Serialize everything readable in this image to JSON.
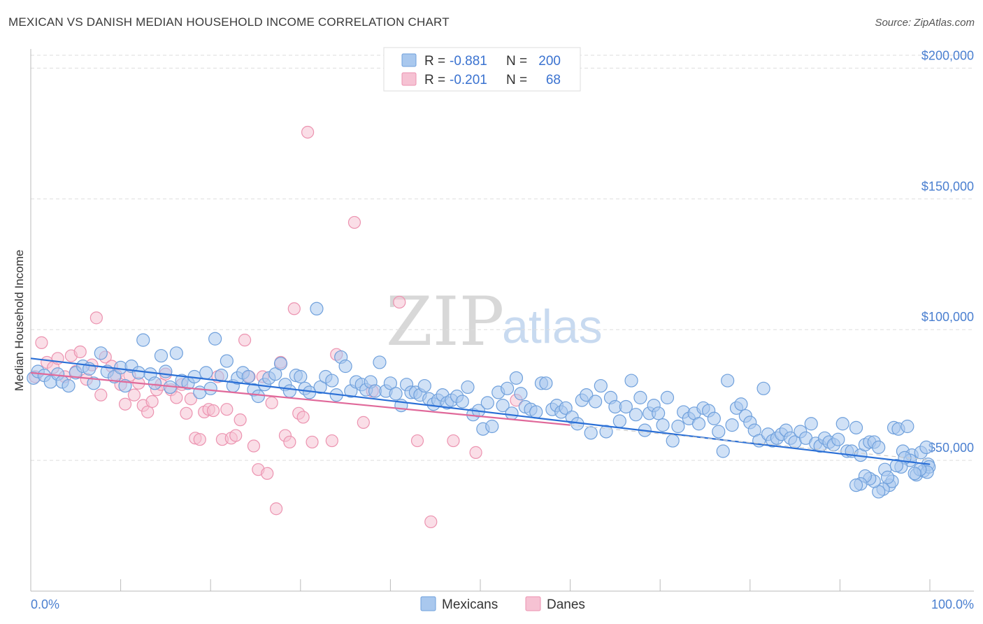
{
  "header": {
    "title": "MEXICAN VS DANISH MEDIAN HOUSEHOLD INCOME CORRELATION CHART",
    "source": "Source: ZipAtlas.com"
  },
  "watermark": {
    "zip": "ZIP",
    "atlas": "atlas"
  },
  "colors": {
    "mexicans_fill": "#a9c8ee",
    "mexicans_stroke": "#6fa0dc",
    "mexicans_line": "#2a6fd6",
    "danes_fill": "#f6c2d3",
    "danes_stroke": "#ec93b0",
    "danes_line": "#e0699a",
    "grid": "#dddddd",
    "axis_label": "#4a7fd0"
  },
  "legend": {
    "rows": [
      {
        "r_label": "R = ",
        "r_value": "-0.881",
        "n_label": "N = ",
        "n_value": "200"
      },
      {
        "r_label": "R = ",
        "r_value": "-0.201",
        "n_label": "N = ",
        "n_value": "68"
      }
    ]
  },
  "bottom_legend": [
    "Mexicans",
    "Danes"
  ],
  "chart_data": {
    "type": "scatter",
    "title": "MEXICAN VS DANISH MEDIAN HOUSEHOLD INCOME CORRELATION CHART",
    "ylabel": "Median Household Income",
    "xlabel": "",
    "xlim": [
      0,
      100
    ],
    "ylim": [
      0,
      210000
    ],
    "x_tick_labels": [
      "0.0%",
      "100.0%"
    ],
    "y_ticks": [
      50000,
      100000,
      150000,
      200000
    ],
    "y_tick_labels": [
      "$50,000",
      "$100,000",
      "$150,000",
      "$200,000"
    ],
    "grid": true,
    "legend_position": "top-center",
    "series": [
      {
        "name": "Mexicans",
        "r": -0.881,
        "n": 200,
        "trend": {
          "x": [
            0,
            100
          ],
          "y": [
            89000,
            48500
          ]
        },
        "points": [
          [
            0.3,
            81500
          ],
          [
            0.8,
            84000
          ],
          [
            1.5,
            82500
          ],
          [
            2.2,
            80000
          ],
          [
            3.0,
            83000
          ],
          [
            3.5,
            80000
          ],
          [
            4.2,
            78500
          ],
          [
            5.0,
            83500
          ],
          [
            5.8,
            86000
          ],
          [
            6.5,
            85000
          ],
          [
            7.0,
            79500
          ],
          [
            7.8,
            91000
          ],
          [
            8.5,
            84000
          ],
          [
            9.3,
            82000
          ],
          [
            10.0,
            85500
          ],
          [
            10.5,
            78500
          ],
          [
            11.2,
            86000
          ],
          [
            12.0,
            83500
          ],
          [
            12.5,
            96000
          ],
          [
            13.3,
            83000
          ],
          [
            13.8,
            79500
          ],
          [
            14.5,
            90000
          ],
          [
            15.0,
            84000
          ],
          [
            15.5,
            78000
          ],
          [
            16.2,
            91000
          ],
          [
            16.8,
            80500
          ],
          [
            17.5,
            79500
          ],
          [
            18.2,
            82000
          ],
          [
            18.8,
            76000
          ],
          [
            19.5,
            83500
          ],
          [
            20.0,
            77500
          ],
          [
            20.5,
            96500
          ],
          [
            21.2,
            82500
          ],
          [
            21.8,
            88000
          ],
          [
            22.5,
            78500
          ],
          [
            23.0,
            81500
          ],
          [
            23.6,
            83500
          ],
          [
            24.2,
            82000
          ],
          [
            24.8,
            77000
          ],
          [
            25.3,
            74500
          ],
          [
            26.0,
            79000
          ],
          [
            26.5,
            81500
          ],
          [
            27.2,
            83000
          ],
          [
            27.8,
            87000
          ],
          [
            28.3,
            79000
          ],
          [
            28.8,
            76500
          ],
          [
            29.5,
            82500
          ],
          [
            30.0,
            82000
          ],
          [
            30.5,
            77500
          ],
          [
            31.0,
            76000
          ],
          [
            31.8,
            108000
          ],
          [
            32.2,
            78000
          ],
          [
            32.8,
            82000
          ],
          [
            33.5,
            80500
          ],
          [
            34.0,
            75000
          ],
          [
            34.5,
            89500
          ],
          [
            35.0,
            86000
          ],
          [
            35.6,
            76500
          ],
          [
            36.2,
            80000
          ],
          [
            36.8,
            79000
          ],
          [
            37.3,
            77000
          ],
          [
            37.8,
            80000
          ],
          [
            38.3,
            76500
          ],
          [
            38.8,
            87500
          ],
          [
            39.5,
            76500
          ],
          [
            40.0,
            79500
          ],
          [
            40.6,
            75500
          ],
          [
            41.2,
            71000
          ],
          [
            41.8,
            79000
          ],
          [
            42.3,
            76000
          ],
          [
            42.8,
            76000
          ],
          [
            43.3,
            75000
          ],
          [
            43.8,
            78500
          ],
          [
            44.3,
            73500
          ],
          [
            44.8,
            71500
          ],
          [
            45.3,
            73000
          ],
          [
            45.8,
            75000
          ],
          [
            46.3,
            72000
          ],
          [
            46.8,
            73000
          ],
          [
            47.4,
            74500
          ],
          [
            48.0,
            72500
          ],
          [
            48.6,
            78000
          ],
          [
            49.2,
            67500
          ],
          [
            49.8,
            69000
          ],
          [
            50.3,
            62000
          ],
          [
            50.8,
            72000
          ],
          [
            51.3,
            63000
          ],
          [
            52.0,
            76000
          ],
          [
            52.5,
            71000
          ],
          [
            53.0,
            77500
          ],
          [
            53.5,
            68000
          ],
          [
            54.0,
            81500
          ],
          [
            54.5,
            75500
          ],
          [
            55.0,
            70500
          ],
          [
            55.6,
            69500
          ],
          [
            56.2,
            68500
          ],
          [
            56.8,
            79500
          ],
          [
            57.3,
            79500
          ],
          [
            58.0,
            69500
          ],
          [
            58.5,
            71000
          ],
          [
            59.0,
            68500
          ],
          [
            59.5,
            70000
          ],
          [
            60.2,
            66500
          ],
          [
            60.8,
            64000
          ],
          [
            61.3,
            73000
          ],
          [
            61.8,
            75000
          ],
          [
            62.3,
            60500
          ],
          [
            62.8,
            72500
          ],
          [
            63.4,
            78500
          ],
          [
            64.0,
            61000
          ],
          [
            64.5,
            74000
          ],
          [
            65.0,
            70500
          ],
          [
            65.5,
            65000
          ],
          [
            66.2,
            70500
          ],
          [
            66.8,
            80500
          ],
          [
            67.3,
            67500
          ],
          [
            67.8,
            74000
          ],
          [
            68.3,
            61500
          ],
          [
            68.8,
            68000
          ],
          [
            69.3,
            71000
          ],
          [
            69.8,
            68000
          ],
          [
            70.3,
            63500
          ],
          [
            70.8,
            74000
          ],
          [
            71.4,
            57500
          ],
          [
            72.0,
            63000
          ],
          [
            72.6,
            68500
          ],
          [
            73.2,
            66000
          ],
          [
            73.8,
            68000
          ],
          [
            74.3,
            64000
          ],
          [
            74.8,
            70000
          ],
          [
            75.4,
            69000
          ],
          [
            76.0,
            66000
          ],
          [
            76.5,
            61000
          ],
          [
            77.0,
            53500
          ],
          [
            77.5,
            80500
          ],
          [
            78.0,
            63500
          ],
          [
            78.5,
            70000
          ],
          [
            79.0,
            71500
          ],
          [
            79.5,
            67000
          ],
          [
            80.0,
            64500
          ],
          [
            80.5,
            61500
          ],
          [
            81.0,
            57500
          ],
          [
            81.5,
            77500
          ],
          [
            82.0,
            60000
          ],
          [
            82.5,
            57500
          ],
          [
            83.0,
            58500
          ],
          [
            83.5,
            60000
          ],
          [
            84.0,
            61500
          ],
          [
            84.5,
            58500
          ],
          [
            85.0,
            57000
          ],
          [
            85.6,
            61000
          ],
          [
            86.2,
            58500
          ],
          [
            86.8,
            64000
          ],
          [
            87.3,
            56500
          ],
          [
            87.8,
            55500
          ],
          [
            88.3,
            58500
          ],
          [
            88.8,
            57000
          ],
          [
            89.3,
            56000
          ],
          [
            89.8,
            58000
          ],
          [
            90.3,
            64000
          ],
          [
            90.8,
            53500
          ],
          [
            91.3,
            53500
          ],
          [
            91.8,
            62500
          ],
          [
            92.3,
            52000
          ],
          [
            92.8,
            56000
          ],
          [
            93.3,
            57000
          ],
          [
            93.8,
            57000
          ],
          [
            94.3,
            55000
          ],
          [
            95.0,
            46500
          ],
          [
            95.5,
            40500
          ],
          [
            96.0,
            62500
          ],
          [
            96.5,
            62000
          ],
          [
            97.0,
            53500
          ],
          [
            97.5,
            63000
          ],
          [
            98.0,
            52000
          ],
          [
            98.5,
            44500
          ],
          [
            99.0,
            53000
          ],
          [
            99.3,
            46000
          ],
          [
            99.6,
            55000
          ],
          [
            99.8,
            48500
          ],
          [
            99.9,
            47500
          ],
          [
            99.7,
            45500
          ],
          [
            98.9,
            46500
          ],
          [
            98.3,
            45000
          ],
          [
            97.8,
            50000
          ],
          [
            97.2,
            51000
          ],
          [
            96.8,
            47500
          ],
          [
            96.3,
            48000
          ],
          [
            95.8,
            42000
          ],
          [
            95.3,
            43500
          ],
          [
            94.8,
            39000
          ],
          [
            94.3,
            38000
          ],
          [
            93.8,
            42000
          ],
          [
            93.3,
            43000
          ],
          [
            92.8,
            44000
          ],
          [
            92.3,
            41000
          ],
          [
            91.8,
            40500
          ]
        ]
      },
      {
        "name": "Danes",
        "r": -0.201,
        "n": 68,
        "trend": {
          "x": [
            0,
            60
          ],
          "y": [
            83500,
            63500
          ]
        },
        "points": [
          [
            0.5,
            82000
          ],
          [
            1.2,
            95000
          ],
          [
            1.8,
            87500
          ],
          [
            2.5,
            85500
          ],
          [
            3.0,
            89000
          ],
          [
            3.8,
            82000
          ],
          [
            4.5,
            90000
          ],
          [
            5.0,
            84000
          ],
          [
            5.5,
            91500
          ],
          [
            6.2,
            81000
          ],
          [
            6.8,
            86500
          ],
          [
            7.3,
            104500
          ],
          [
            7.8,
            75000
          ],
          [
            8.3,
            89500
          ],
          [
            9.0,
            86000
          ],
          [
            9.5,
            82500
          ],
          [
            10.0,
            79000
          ],
          [
            10.5,
            71500
          ],
          [
            11.0,
            82500
          ],
          [
            11.5,
            75000
          ],
          [
            12.0,
            79500
          ],
          [
            12.5,
            71000
          ],
          [
            13.0,
            68500
          ],
          [
            13.5,
            72500
          ],
          [
            14.0,
            77000
          ],
          [
            14.5,
            79000
          ],
          [
            15.0,
            83000
          ],
          [
            15.6,
            77000
          ],
          [
            16.2,
            74000
          ],
          [
            16.8,
            79000
          ],
          [
            17.3,
            68000
          ],
          [
            17.8,
            73500
          ],
          [
            18.3,
            58500
          ],
          [
            18.8,
            58000
          ],
          [
            19.3,
            68500
          ],
          [
            19.8,
            69500
          ],
          [
            20.3,
            69000
          ],
          [
            20.8,
            82000
          ],
          [
            21.3,
            58000
          ],
          [
            21.8,
            69500
          ],
          [
            22.3,
            58500
          ],
          [
            22.8,
            59500
          ],
          [
            23.3,
            65500
          ],
          [
            23.8,
            96000
          ],
          [
            24.3,
            82000
          ],
          [
            24.8,
            55500
          ],
          [
            25.3,
            46500
          ],
          [
            25.8,
            82000
          ],
          [
            26.3,
            45000
          ],
          [
            26.8,
            72000
          ],
          [
            27.3,
            31500
          ],
          [
            27.8,
            87500
          ],
          [
            28.3,
            59500
          ],
          [
            28.8,
            57000
          ],
          [
            29.3,
            108000
          ],
          [
            29.8,
            68000
          ],
          [
            30.3,
            66500
          ],
          [
            30.8,
            175500
          ],
          [
            31.3,
            57000
          ],
          [
            33.5,
            57500
          ],
          [
            34.0,
            90500
          ],
          [
            36.0,
            141000
          ],
          [
            37.0,
            64500
          ],
          [
            38.0,
            76500
          ],
          [
            41.0,
            110500
          ],
          [
            43.0,
            57500
          ],
          [
            44.5,
            26500
          ],
          [
            47.0,
            57500
          ],
          [
            49.5,
            53000
          ],
          [
            54.0,
            73000
          ]
        ]
      }
    ]
  }
}
